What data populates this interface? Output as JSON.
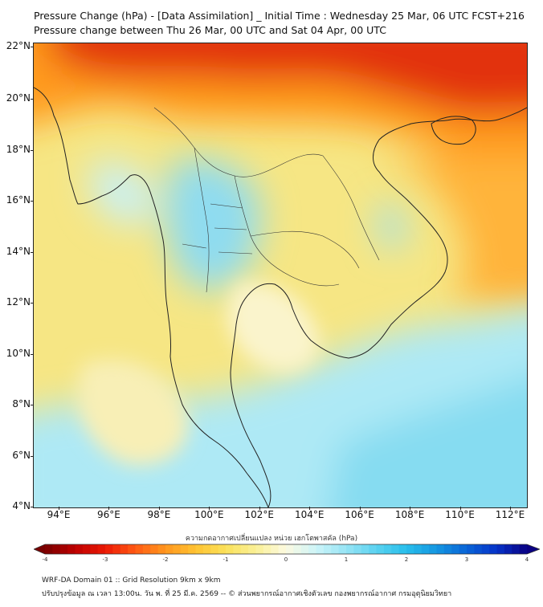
{
  "title": {
    "line1": "Pressure Change (hPa) - [Data Assimilation] _ Initial Time : Wednesday 25 Mar, 06 UTC FCST+216",
    "line2": "Pressure change between Thu 26 Mar, 00 UTC and Sat 04 Apr, 00 UTC"
  },
  "axes": {
    "lat_labels": [
      "22°N",
      "20°N",
      "18°N",
      "16°N",
      "14°N",
      "12°N",
      "10°N",
      "8°N",
      "6°N",
      "4°N"
    ],
    "lon_labels": [
      "94°E",
      "96°E",
      "98°E",
      "100°E",
      "102°E",
      "104°E",
      "106°E",
      "108°E",
      "110°E",
      "112°E"
    ]
  },
  "colorbar": {
    "title": "ความกดอากาศเปลี่ยนแปลง หน่วย เฮกโตพาสคัล (hPa)",
    "labels": [
      "-4",
      "-3",
      "-2",
      "-1",
      "0",
      "1",
      "2",
      "3",
      "4"
    ],
    "range": [
      -4,
      4
    ]
  },
  "footer": {
    "line1": "WRF-DA Domain 01 :: Grid Resolution 9km x 9km",
    "line2": "ปรับปรุงข้อมูล ณ เวลา 13:00น. วัน พ. ที่ 25 มี.ค. 2569 -- © ส่วนพยากรณ์อากาศเชิงตัวเลข กองพยากรณ์อากาศ กรมอุตุนิยมวิทยา"
  },
  "colors": {
    "strong_rise": "#d81e05",
    "rise": "#ff8c1a",
    "slight_rise": "#f5e37a",
    "neutral": "#fbf6d6",
    "slight_fall": "#bfeef7",
    "fall": "#7fd8ef",
    "ocean_fall": "#a6e8f6",
    "coast": "#222222"
  }
}
